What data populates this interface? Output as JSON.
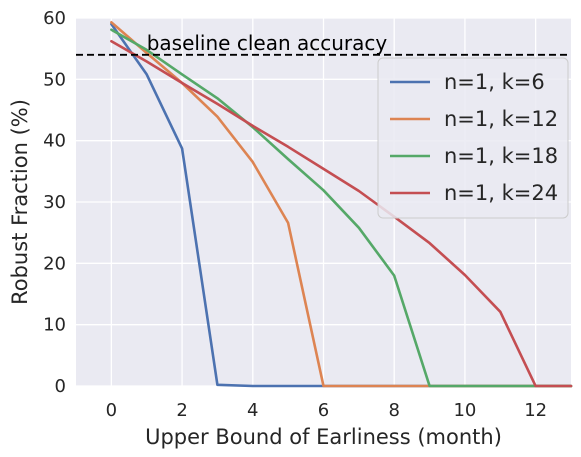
{
  "chart_data": {
    "type": "line",
    "title": "",
    "xlabel": "Upper Bound of Earliness (month)",
    "ylabel": "Robust Fraction (%)",
    "xlim": [
      -1,
      13
    ],
    "ylim": [
      0,
      60
    ],
    "xticks": [
      0,
      2,
      4,
      6,
      8,
      10,
      12
    ],
    "yticks": [
      0,
      10,
      20,
      30,
      40,
      50,
      60
    ],
    "grid": true,
    "legend_position": "top-right",
    "background": "#EAEAF2",
    "series": [
      {
        "name": "n=1, k=6",
        "color": "#4C72B0",
        "x": [
          0,
          1,
          2,
          3,
          4,
          5,
          6,
          7,
          8,
          9,
          10,
          11,
          12,
          13
        ],
        "values": [
          59.0,
          50.8,
          38.7,
          0.2,
          0,
          0,
          0,
          0,
          0,
          0,
          0,
          0,
          0,
          0
        ]
      },
      {
        "name": "n=1, k=12",
        "color": "#DD8452",
        "x": [
          0,
          1,
          2,
          3,
          4,
          5,
          6,
          7,
          8,
          9,
          10,
          11,
          12,
          13
        ],
        "values": [
          59.3,
          54.3,
          49.4,
          43.9,
          36.5,
          26.6,
          0,
          0,
          0,
          0,
          0,
          0,
          0,
          0
        ]
      },
      {
        "name": "n=1, k=18",
        "color": "#55A868",
        "x": [
          0,
          1,
          2,
          3,
          4,
          5,
          6,
          7,
          8,
          9,
          10,
          11,
          12,
          13
        ],
        "values": [
          58.1,
          54.8,
          50.8,
          46.9,
          42.2,
          37.0,
          31.9,
          25.8,
          18.0,
          0,
          0,
          0,
          0,
          0
        ]
      },
      {
        "name": "n=1, k=24",
        "color": "#C44E52",
        "x": [
          0,
          1,
          2,
          3,
          4,
          5,
          6,
          7,
          8,
          9,
          10,
          11,
          12,
          13
        ],
        "values": [
          56.2,
          52.9,
          49.4,
          46.0,
          42.4,
          39.0,
          35.4,
          31.8,
          27.6,
          23.3,
          18.1,
          12.1,
          0,
          0
        ]
      }
    ],
    "reference_line": {
      "label": "baseline clean accuracy",
      "value": 54.0,
      "style": "dashed",
      "color": "#000000"
    }
  }
}
